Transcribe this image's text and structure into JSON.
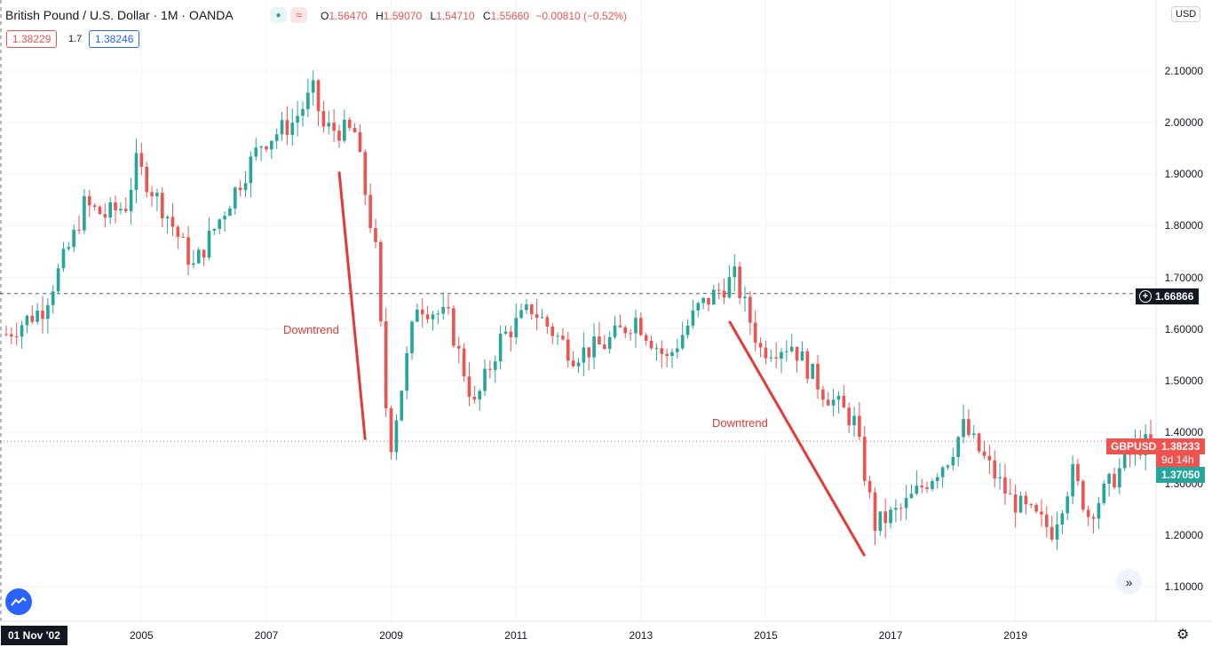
{
  "header": {
    "symbol_title": "British Pound / U.S. Dollar · 1M · OANDA",
    "open_key": "O",
    "open": "1.56470",
    "high_key": "H",
    "high": "1.59070",
    "low_key": "L",
    "low": "1.54710",
    "close_key": "C",
    "close": "1.55660",
    "change": "−0.00810 (−0.52%)",
    "bid": "1.38229",
    "spread": "1.7",
    "ask": "1.38246",
    "currency": "USD"
  },
  "colors": {
    "up": "#26a69a",
    "down": "#ef5350",
    "annotation": "#e53935",
    "crosshair": "#131722"
  },
  "price_tags": {
    "crosshair_price": "1.66866",
    "symbol": "GBPUSD",
    "last_price": "1.38233",
    "countdown": "9d 14h",
    "secondary_price": "1.37050"
  },
  "annotations": [
    "Downtrend",
    "Downtrend"
  ],
  "time_badge": "01 Nov '02",
  "chart_data": {
    "type": "candlestick",
    "interval": "1M",
    "ylim": [
      1.05,
      2.2
    ],
    "y_ticks": [
      "2.10000",
      "2.00000",
      "1.90000",
      "1.80000",
      "1.70000",
      "1.60000",
      "1.50000",
      "1.40000",
      "1.30000",
      "1.20000",
      "1.10000"
    ],
    "x_ticks": [
      "2005",
      "2007",
      "2009",
      "2011",
      "2013",
      "2015",
      "2017",
      "2019"
    ],
    "x_range": [
      "2002-11",
      "2021-03"
    ],
    "anchors": [
      [
        "2002-11",
        1.59
      ],
      [
        "2003-06",
        1.64
      ],
      [
        "2003-12",
        1.78
      ],
      [
        "2004-02",
        1.84
      ],
      [
        "2004-06",
        1.82
      ],
      [
        "2004-10",
        1.84
      ],
      [
        "2004-12",
        1.92
      ],
      [
        "2005-06",
        1.82
      ],
      [
        "2005-11",
        1.72
      ],
      [
        "2006-06",
        1.85
      ],
      [
        "2006-12",
        1.96
      ],
      [
        "2007-06",
        2.0
      ],
      [
        "2007-10",
        2.06
      ],
      [
        "2007-12",
        1.99
      ],
      [
        "2008-06",
        1.98
      ],
      [
        "2008-10",
        1.75
      ],
      [
        "2008-12",
        1.45
      ],
      [
        "2009-01",
        1.38
      ],
      [
        "2009-06",
        1.65
      ],
      [
        "2009-12",
        1.62
      ],
      [
        "2010-05",
        1.45
      ],
      [
        "2010-10",
        1.58
      ],
      [
        "2011-04",
        1.64
      ],
      [
        "2011-12",
        1.55
      ],
      [
        "2012-06",
        1.57
      ],
      [
        "2012-12",
        1.62
      ],
      [
        "2013-06",
        1.54
      ],
      [
        "2013-12",
        1.64
      ],
      [
        "2014-07",
        1.7
      ],
      [
        "2014-12",
        1.56
      ],
      [
        "2015-06",
        1.57
      ],
      [
        "2015-12",
        1.48
      ],
      [
        "2016-06",
        1.42
      ],
      [
        "2016-10",
        1.22
      ],
      [
        "2017-03",
        1.25
      ],
      [
        "2017-12",
        1.35
      ],
      [
        "2018-03",
        1.41
      ],
      [
        "2018-12",
        1.27
      ],
      [
        "2019-08",
        1.21
      ],
      [
        "2019-12",
        1.32
      ],
      [
        "2020-03",
        1.24
      ],
      [
        "2020-12",
        1.37
      ],
      [
        "2021-03",
        1.38
      ]
    ],
    "reference_lines": [
      1.66866,
      1.38233
    ],
    "trend_lines": [
      {
        "label": "Downtrend",
        "start": [
          "2008-03",
          1.905
        ],
        "end": [
          "2008-08",
          1.385
        ]
      },
      {
        "label": "Downtrend",
        "start": [
          "2014-06",
          1.615
        ],
        "end": [
          "2016-08",
          1.16
        ]
      }
    ]
  }
}
